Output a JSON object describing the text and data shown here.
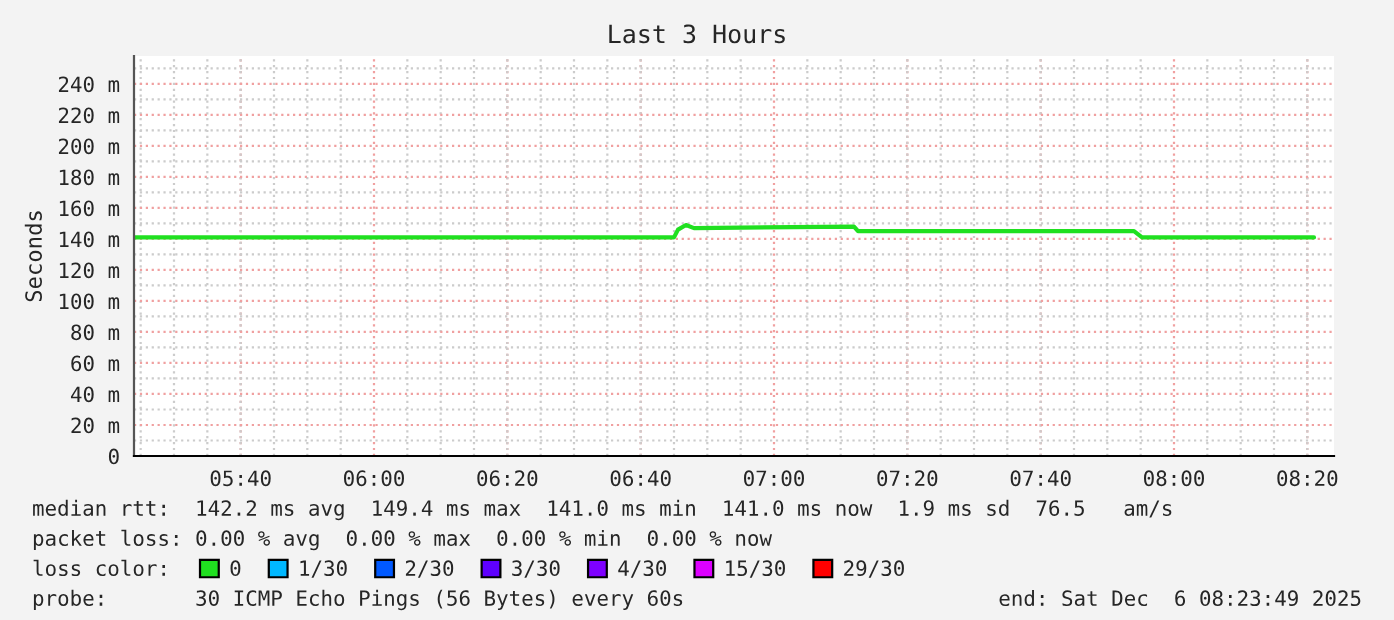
{
  "chart_data": {
    "type": "line",
    "title": "Last 3 Hours",
    "ylabel": "Seconds",
    "xlim": [
      5.4,
      8.4
    ],
    "xticks": [
      {
        "value": 5.6667,
        "label": "05:40"
      },
      {
        "value": 6.0,
        "label": "06:00"
      },
      {
        "value": 6.3333,
        "label": "06:20"
      },
      {
        "value": 6.6667,
        "label": "06:40"
      },
      {
        "value": 7.0,
        "label": "07:00"
      },
      {
        "value": 7.3333,
        "label": "07:20"
      },
      {
        "value": 7.6667,
        "label": "07:40"
      },
      {
        "value": 8.0,
        "label": "08:00"
      },
      {
        "value": 8.3333,
        "label": "08:20"
      }
    ],
    "ylim": [
      0,
      258
    ],
    "yticks": [
      {
        "value": 0,
        "label": "0"
      },
      {
        "value": 20,
        "label": "20 m"
      },
      {
        "value": 40,
        "label": "40 m"
      },
      {
        "value": 60,
        "label": "60 m"
      },
      {
        "value": 80,
        "label": "80 m"
      },
      {
        "value": 100,
        "label": "100 m"
      },
      {
        "value": 120,
        "label": "120 m"
      },
      {
        "value": 140,
        "label": "140 m"
      },
      {
        "value": 160,
        "label": "160 m"
      },
      {
        "value": 180,
        "label": "180 m"
      },
      {
        "value": 200,
        "label": "200 m"
      },
      {
        "value": 220,
        "label": "220 m"
      },
      {
        "value": 240,
        "label": "240 m"
      }
    ],
    "grid": true,
    "legend": "bottom",
    "legend_title": "loss color:",
    "series": [
      {
        "name": "0",
        "color": "#20e020",
        "x": [
          5.4,
          6.75,
          6.76,
          6.78,
          6.8,
          7.2,
          7.21,
          7.9,
          7.92,
          8.35
        ],
        "values": [
          141,
          141,
          146,
          149,
          147,
          148,
          145,
          145,
          141,
          141
        ]
      },
      {
        "name": "1/30",
        "color": "#00b8ff"
      },
      {
        "name": "2/30",
        "color": "#0059ff"
      },
      {
        "name": "3/30",
        "color": "#5e00ff"
      },
      {
        "name": "4/30",
        "color": "#7e00ff"
      },
      {
        "name": "15/30",
        "color": "#dd00ff"
      },
      {
        "name": "29/30",
        "color": "#ff0000"
      }
    ],
    "annotations": [
      "median rtt:  142.2 ms avg  149.4 ms max  141.0 ms min  141.0 ms now  1.9 ms sd  76.5   am/s",
      "packet loss: 0.00 % avg  0.00 % max  0.00 % min  0.00 % now",
      "probe:       30 ICMP Echo Pings (56 Bytes) every 60s",
      "end: Sat Dec  6 08:23:49 2025"
    ]
  }
}
